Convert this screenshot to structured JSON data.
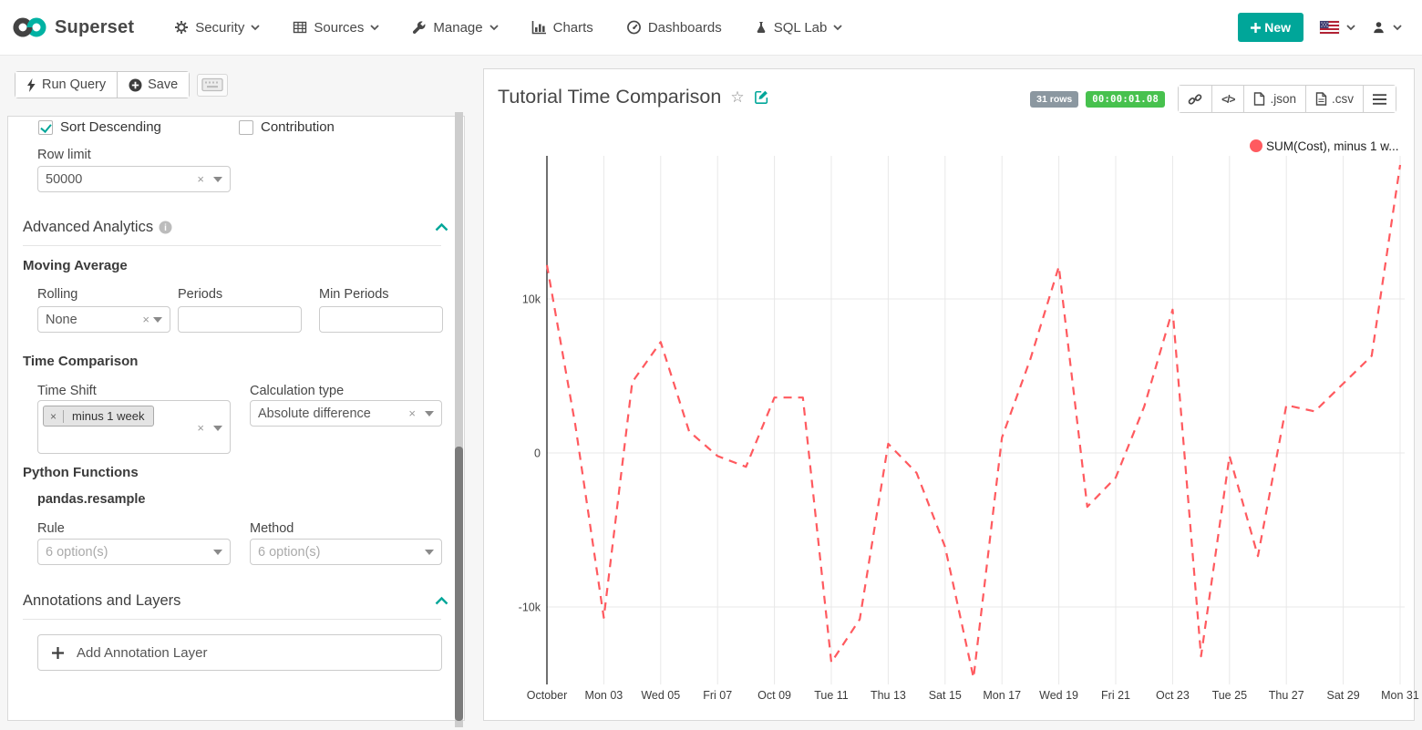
{
  "navbar": {
    "brand": "Superset",
    "items": [
      {
        "label": "Security"
      },
      {
        "label": "Sources"
      },
      {
        "label": "Manage"
      },
      {
        "label": "Charts"
      },
      {
        "label": "Dashboards"
      },
      {
        "label": "SQL Lab"
      }
    ],
    "new_button": "New"
  },
  "query_panel": {
    "run_query": "Run Query",
    "save": "Save",
    "sort_descending": {
      "label": "Sort Descending",
      "checked": true
    },
    "contribution": {
      "label": "Contribution",
      "checked": false
    },
    "row_limit": {
      "label": "Row limit",
      "value": "50000"
    },
    "advanced_analytics": {
      "title": "Advanced Analytics"
    },
    "moving_average": {
      "title": "Moving Average",
      "rolling_label": "Rolling",
      "rolling_value": "None",
      "periods_label": "Periods",
      "periods_value": "",
      "min_periods_label": "Min Periods",
      "min_periods_value": ""
    },
    "time_comparison": {
      "title": "Time Comparison",
      "time_shift_label": "Time Shift",
      "time_shift_tag": "minus 1 week",
      "calc_type_label": "Calculation type",
      "calc_type_value": "Absolute difference"
    },
    "python_functions": {
      "title": "Python Functions",
      "subtitle": "pandas.resample",
      "rule_label": "Rule",
      "rule_placeholder": "6 option(s)",
      "method_label": "Method",
      "method_placeholder": "6 option(s)"
    },
    "annotations": {
      "title": "Annotations and Layers",
      "add_button": "Add Annotation Layer"
    }
  },
  "chart_panel": {
    "title": "Tutorial Time Comparison",
    "rows_badge": "31 rows",
    "timer_badge": "00:00:01.08",
    "export_json_label": ".json",
    "export_csv_label": ".csv",
    "code_button_label": "</>"
  },
  "chart_data": {
    "type": "line",
    "title": "Tutorial Time Comparison",
    "line_style": "dashed",
    "legend": [
      {
        "label": "SUM(Cost), minus 1 w...",
        "color": "#ff5a5f"
      }
    ],
    "x": [
      "Oct 01",
      "Oct 02",
      "Oct 03",
      "Oct 04",
      "Oct 05",
      "Oct 06",
      "Oct 07",
      "Oct 08",
      "Oct 09",
      "Oct 10",
      "Oct 11",
      "Oct 12",
      "Oct 13",
      "Oct 14",
      "Oct 15",
      "Oct 16",
      "Oct 17",
      "Oct 18",
      "Oct 19",
      "Oct 20",
      "Oct 21",
      "Oct 22",
      "Oct 23",
      "Oct 24",
      "Oct 25",
      "Oct 26",
      "Oct 27",
      "Oct 28",
      "Oct 29",
      "Oct 30",
      "Oct 31"
    ],
    "x_tick_labels": [
      "October",
      "Mon 03",
      "Wed 05",
      "Fri 07",
      "Oct 09",
      "Tue 11",
      "Thu 13",
      "Sat 15",
      "Mon 17",
      "Wed 19",
      "Fri 21",
      "Oct 23",
      "Tue 25",
      "Thu 27",
      "Sat 29",
      "Mon 31"
    ],
    "y_ticks": [
      10000,
      0,
      -10000
    ],
    "y_tick_labels": [
      "10k",
      "0",
      "-10k"
    ],
    "ylim": [
      -15000,
      19300
    ],
    "grid": true,
    "series": [
      {
        "name": "SUM(Cost), minus 1 week",
        "values": [
          12200,
          1800,
          -10700,
          4600,
          7200,
          1400,
          -200,
          -900,
          3600,
          3600,
          -13600,
          -10800,
          600,
          -1300,
          -6100,
          -14600,
          1000,
          6100,
          12100,
          -3500,
          -1600,
          3000,
          9300,
          -13200,
          -200,
          -6700,
          3100,
          2700,
          4500,
          6300,
          18700
        ]
      }
    ]
  },
  "colors": {
    "accent_teal": "#00a699",
    "series_red": "#ff5a5f",
    "badge_gray": "#8b97a0",
    "badge_green": "#47c14e"
  }
}
